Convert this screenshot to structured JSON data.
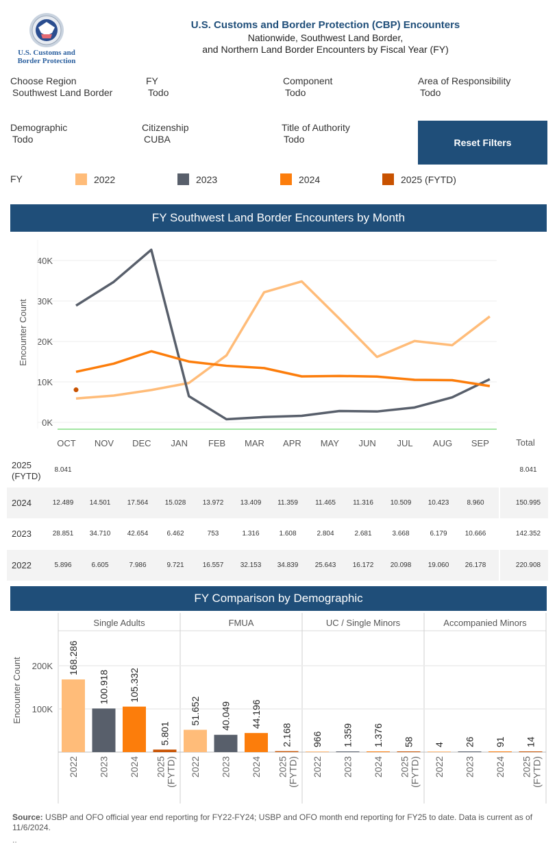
{
  "header": {
    "logo_text_line1": "U.S. Customs and",
    "logo_text_line2": "Border Protection",
    "title": "U.S. Customs and Border Protection (CBP) Encounters",
    "subtitle_line1": "Nationwide, Southwest Land Border,",
    "subtitle_line2": "and Northern Land Border Encounters by Fiscal Year (FY)"
  },
  "filters": [
    {
      "label": "Choose Region",
      "value": "Southwest Land Border"
    },
    {
      "label": "FY",
      "value": "Todo"
    },
    {
      "label": "Component",
      "value": "Todo"
    },
    {
      "label": "Area of Responsibility",
      "value": "Todo"
    },
    {
      "label": "Demographic",
      "value": "Todo"
    },
    {
      "label": "Citizenship",
      "value": "CUBA"
    },
    {
      "label": "Title of Authority",
      "value": "Todo"
    }
  ],
  "reset_button": "Reset Filters",
  "legend": {
    "label": "FY",
    "items": [
      {
        "name": "2022",
        "color": "#ffbc79"
      },
      {
        "name": "2023",
        "color": "#585f6b"
      },
      {
        "name": "2024",
        "color": "#fc7d0b"
      },
      {
        "name": "2025 (FYTD)",
        "color": "#c85200"
      }
    ]
  },
  "sections": {
    "monthly_title": "FY Southwest Land Border Encounters by Month",
    "demographic_title": "FY Comparison by Demographic"
  },
  "table": {
    "total_label": "Total",
    "rows": [
      {
        "year": "2025",
        "year_sub": "(FYTD)",
        "values": [
          "8.041",
          "",
          "",
          "",
          "",
          "",
          "",
          "",
          "",
          "",
          "",
          ""
        ],
        "total": "8.041"
      },
      {
        "year": "2024",
        "year_sub": "",
        "values": [
          "12.489",
          "14.501",
          "17.564",
          "15.028",
          "13.972",
          "13.409",
          "11.359",
          "11.465",
          "11.316",
          "10.509",
          "10.423",
          "8.960"
        ],
        "total": "150.995"
      },
      {
        "year": "2023",
        "year_sub": "",
        "values": [
          "28.851",
          "34.710",
          "42.654",
          "6.462",
          "753",
          "1.316",
          "1.608",
          "2.804",
          "2.681",
          "3.668",
          "6.179",
          "10.666"
        ],
        "total": "142.352"
      },
      {
        "year": "2022",
        "year_sub": "",
        "values": [
          "5.896",
          "6.605",
          "7.986",
          "9.721",
          "16.557",
          "32.153",
          "34.839",
          "25.643",
          "16.172",
          "20.098",
          "19.060",
          "26.178"
        ],
        "total": "220.908"
      }
    ]
  },
  "source": {
    "label": "Source:",
    "text": " USBP and OFO official year end reporting for FY22-FY24; USBP and OFO month end reporting for FY25 to date. Data is current as of 11/6/2024.",
    "trailer": ".."
  },
  "chart_data": [
    {
      "type": "line",
      "title": "FY Southwest Land Border Encounters by Month",
      "xlabel": "",
      "ylabel": "Encounter Count",
      "categories": [
        "OCT",
        "NOV",
        "DEC",
        "JAN",
        "FEB",
        "MAR",
        "APR",
        "MAY",
        "JUN",
        "JUL",
        "AUG",
        "SEP"
      ],
      "yticks": [
        "0K",
        "10K",
        "20K",
        "30K",
        "40K"
      ],
      "ylim": [
        -1500,
        44000
      ],
      "grid": true,
      "series": [
        {
          "name": "2022",
          "color": "#ffbc79",
          "values": [
            5896,
            6605,
            7986,
            9721,
            16557,
            32153,
            34839,
            25643,
            16172,
            20098,
            19060,
            26178
          ]
        },
        {
          "name": "2023",
          "color": "#585f6b",
          "values": [
            28851,
            34710,
            42654,
            6462,
            753,
            1316,
            1608,
            2804,
            2681,
            3668,
            6179,
            10666
          ]
        },
        {
          "name": "2024",
          "color": "#fc7d0b",
          "values": [
            12489,
            14501,
            17564,
            15028,
            13972,
            13409,
            11359,
            11465,
            11316,
            10509,
            10423,
            8960
          ]
        },
        {
          "name": "2025 (FYTD)",
          "color": "#c85200",
          "values": [
            8041,
            null,
            null,
            null,
            null,
            null,
            null,
            null,
            null,
            null,
            null,
            null
          ]
        }
      ]
    },
    {
      "type": "bar",
      "title": "FY Comparison by Demographic",
      "ylabel": "Encounter Count",
      "yticks": [
        "100K",
        "200K"
      ],
      "ylim": [
        0,
        270000
      ],
      "grid": true,
      "groups": [
        "Single Adults",
        "FMUA",
        "UC / Single Minors",
        "Accompanied Minors"
      ],
      "categories": [
        "2022",
        "2023",
        "2024",
        "2025 (FYTD)"
      ],
      "colors": [
        "#ffbc79",
        "#585f6b",
        "#fc7d0b",
        "#c85200"
      ],
      "values": [
        [
          168286,
          100918,
          105332,
          5801
        ],
        [
          51652,
          40049,
          44196,
          2168
        ],
        [
          966,
          1359,
          1376,
          58
        ],
        [
          4,
          26,
          91,
          14
        ]
      ],
      "labels": [
        [
          "168.286",
          "100.918",
          "105.332",
          "5.801"
        ],
        [
          "51.652",
          "40.049",
          "44.196",
          "2.168"
        ],
        [
          "966",
          "1.359",
          "1.376",
          "58"
        ],
        [
          "4",
          "26",
          "91",
          "14"
        ]
      ]
    }
  ]
}
